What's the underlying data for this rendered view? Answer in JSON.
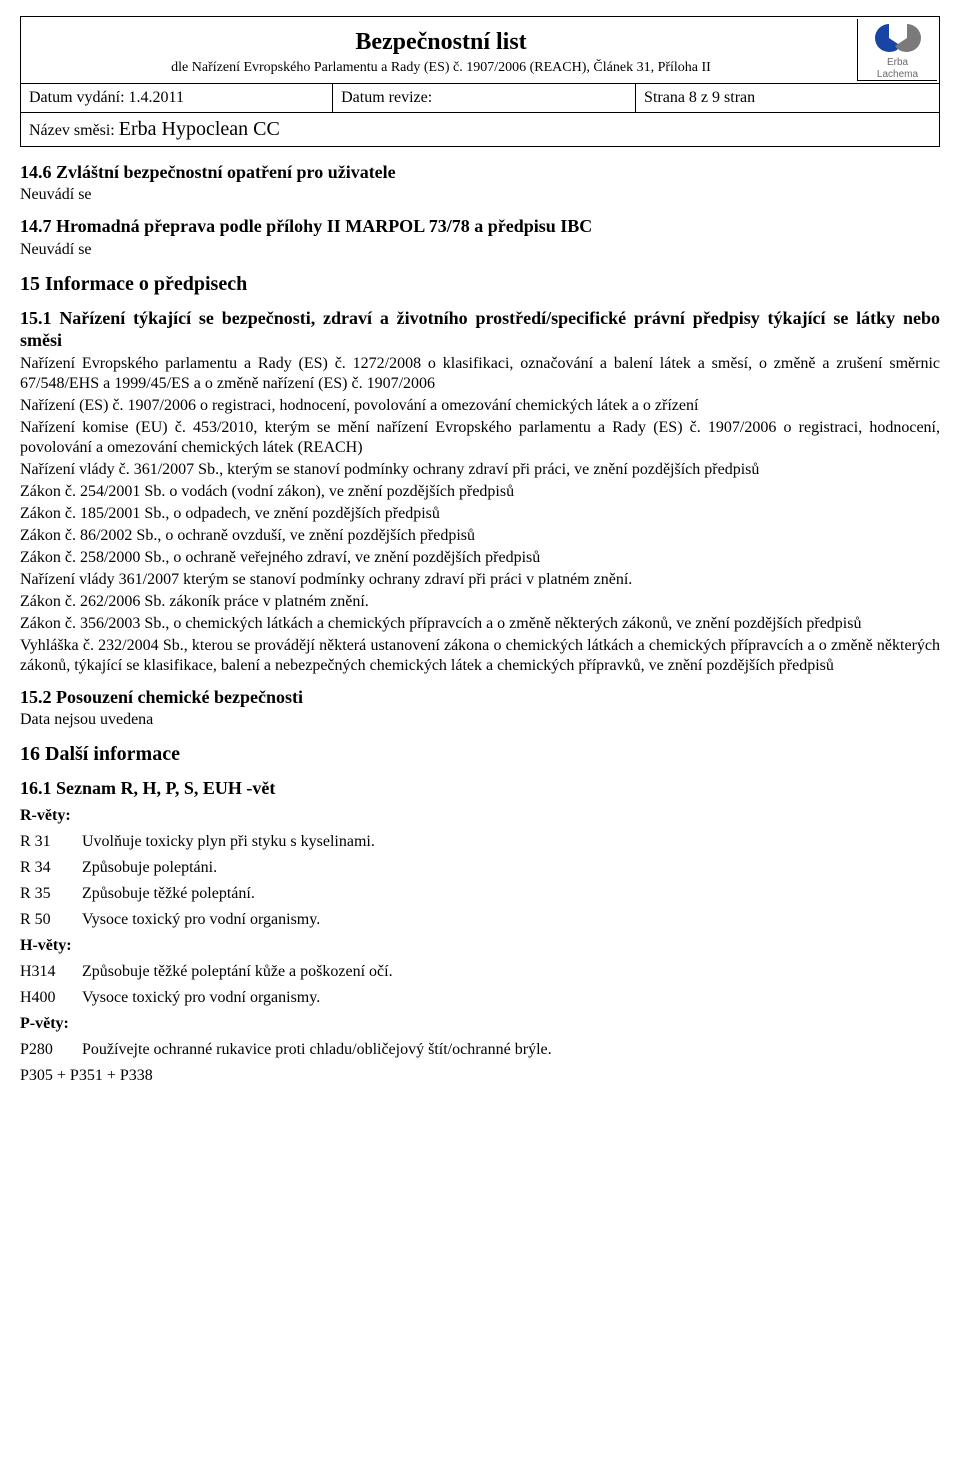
{
  "header": {
    "title": "Bezpečnostní list",
    "subtitle": "dle Nařízení Evropského Parlamentu a Rady (ES) č. 1907/2006 (REACH), Článek 31, Příloha II",
    "logo_top": "Erba",
    "logo_bottom": "Lachema"
  },
  "meta": {
    "issued_label": "Datum vydání: ",
    "issued_value": "1.4.2011",
    "revision_label": "Datum revize:",
    "page_label": "Strana 8 z 9 stran",
    "mixture_label": "Název směsi: ",
    "mixture_name": "Erba Hypoclean CC"
  },
  "sections": {
    "s14_6_title": "14.6  Zvláštní bezpečnostní opatření pro uživatele",
    "s14_6_body": "Neuvádí se",
    "s14_7_title": "14.7  Hromadná přeprava podle přílohy II MARPOL 73/78 a předpisu IBC",
    "s14_7_body": "Neuvádí se",
    "s15_title": "15  Informace o předpisech",
    "s15_1_title": "15.1  Nařízení týkající se bezpečnosti, zdraví a životního prostředí/specifické právní předpisy týkající se látky nebo směsi",
    "s15_1_paragraphs": [
      "Nařízení Evropského parlamentu a Rady (ES) č. 1272/2008 o klasifikaci, označování a balení látek a směsí, o změně a zrušení směrnic 67/548/EHS a 1999/45/ES a o změně nařízení (ES) č. 1907/2006",
      "Nařízení (ES) č. 1907/2006 o registraci, hodnocení, povolování a omezování chemických látek a o zřízení",
      "Nařízení komise (EU) č. 453/2010, kterým se mění nařízení Evropského parlamentu a Rady (ES) č. 1907/2006 o registraci, hodnocení, povolování a omezování chemických látek (REACH)",
      "Nařízení vlády č. 361/2007 Sb., kterým se stanoví podmínky ochrany zdraví při práci, ve znění pozdějších předpisů",
      "Zákon č. 254/2001 Sb. o vodách (vodní zákon), ve znění pozdějších předpisů",
      "Zákon č. 185/2001 Sb., o odpadech, ve znění pozdějších předpisů",
      "Zákon č. 86/2002 Sb., o ochraně ovzduší, ve znění pozdějších předpisů",
      "Zákon č. 258/2000 Sb., o ochraně veřejného zdraví, ve znění pozdějších předpisů",
      "Nařízení vlády 361/2007 kterým se stanoví podmínky ochrany zdraví při práci v platném znění.",
      "Zákon č. 262/2006 Sb. zákoník práce v platném znění.",
      "Zákon č. 356/2003 Sb., o chemických látkách a chemických přípravcích a o změně některých zákonů, ve znění pozdějších předpisů",
      "Vyhláška č. 232/2004 Sb., kterou se provádějí některá ustanovení zákona o chemických látkách a chemických přípravcích a o změně některých zákonů, týkající se klasifikace, balení a nebezpečných chemických látek a chemických přípravků, ve znění pozdějších předpisů"
    ],
    "s15_2_title": "15.2  Posouzení chemické bezpečnosti",
    "s15_2_body": "Data nejsou uvedena",
    "s16_title": "16  Další informace",
    "s16_1_title": "16.1  Seznam R, H, P, S, EUH -vět",
    "r_heading": "R-věty:",
    "r_list": [
      {
        "code": "R 31",
        "text": "Uvolňuje toxicky plyn při styku s kyselinami."
      },
      {
        "code": "R 34",
        "text": "Způsobuje poleptáni."
      },
      {
        "code": "R 35",
        "text": "Způsobuje těžké poleptání."
      },
      {
        "code": "R 50",
        "text": "Vysoce toxický pro vodní organismy."
      }
    ],
    "h_heading": "H-věty:",
    "h_list": [
      {
        "code": "H314",
        "text": "Způsobuje těžké poleptání kůže a poškození očí."
      },
      {
        "code": "H400",
        "text": "Vysoce toxický pro vodní organismy."
      }
    ],
    "p_heading": "P-věty:",
    "p_list": [
      {
        "code": "P280",
        "text": "Používejte ochranné rukavice proti chladu/obličejový štít/ochranné brýle."
      }
    ],
    "p_combo": "P305 + P351 + P338"
  }
}
